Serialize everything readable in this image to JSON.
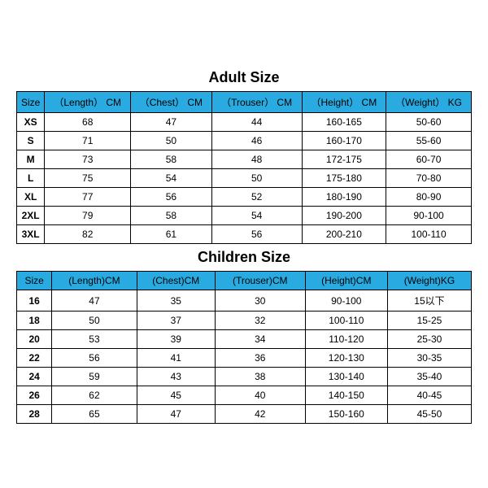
{
  "adult": {
    "title": "Adult Size",
    "columns": [
      "Size",
      "（Length） CM",
      "（Chest） CM",
      "（Trouser） CM",
      "（Height） CM",
      "（Weight） KG"
    ],
    "rows": [
      [
        "XS",
        "68",
        "47",
        "44",
        "160-165",
        "50-60"
      ],
      [
        "S",
        "71",
        "50",
        "46",
        "160-170",
        "55-60"
      ],
      [
        "M",
        "73",
        "58",
        "48",
        "172-175",
        "60-70"
      ],
      [
        "L",
        "75",
        "54",
        "50",
        "175-180",
        "70-80"
      ],
      [
        "XL",
        "77",
        "56",
        "52",
        "180-190",
        "80-90"
      ],
      [
        "2XL",
        "79",
        "58",
        "54",
        "190-200",
        "90-100"
      ],
      [
        "3XL",
        "82",
        "61",
        "56",
        "200-210",
        "100-110"
      ]
    ],
    "header_bg": "#29abe2",
    "border_color": "#000000"
  },
  "children": {
    "title": "Children Size",
    "columns": [
      "Size",
      "(Length)CM",
      "(Chest)CM",
      "(Trouser)CM",
      "(Height)CM",
      "(Weight)KG"
    ],
    "rows": [
      [
        "16",
        "47",
        "35",
        "30",
        "90-100",
        "15以下"
      ],
      [
        "18",
        "50",
        "37",
        "32",
        "100-110",
        "15-25"
      ],
      [
        "20",
        "53",
        "39",
        "34",
        "110-120",
        "25-30"
      ],
      [
        "22",
        "56",
        "41",
        "36",
        "120-130",
        "30-35"
      ],
      [
        "24",
        "59",
        "43",
        "38",
        "130-140",
        "35-40"
      ],
      [
        "26",
        "62",
        "45",
        "40",
        "140-150",
        "40-45"
      ],
      [
        "28",
        "65",
        "47",
        "42",
        "150-160",
        "45-50"
      ]
    ],
    "header_bg": "#29abe2",
    "border_color": "#000000"
  }
}
